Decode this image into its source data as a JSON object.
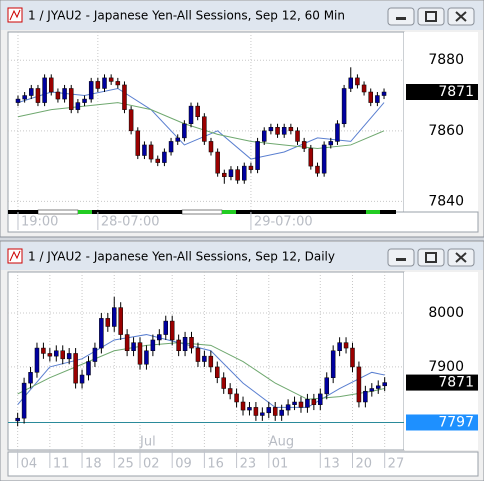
{
  "chart_data": [
    {
      "type": "candlestick",
      "title": "1 / JYAU2 - Japanese Yen-All Sessions, Sep 12, 60 Min",
      "up_color": "#0000a0",
      "down_color": "#9a0000",
      "open": [
        7868,
        7869,
        7870,
        7872,
        7868,
        7875,
        7871,
        7869,
        7872,
        7866,
        7868,
        7869,
        7874,
        7872,
        7875,
        7874,
        7873,
        7866,
        7860,
        7853,
        7856,
        7852,
        7851,
        7854,
        7857,
        7858,
        7862,
        7867,
        7864,
        7857,
        7854,
        7848,
        7847,
        7849,
        7846,
        7850,
        7849,
        7857,
        7860,
        7861,
        7859,
        7861,
        7860,
        7857,
        7855,
        7850,
        7848,
        7856,
        7857,
        7862,
        7872,
        7875,
        7873,
        7871,
        7868,
        7870
      ],
      "high": [
        7870,
        7871,
        7873,
        7873,
        7876,
        7876,
        7872,
        7873,
        7873,
        7869,
        7870,
        7875,
        7875,
        7876,
        7876,
        7875,
        7874,
        7867,
        7861,
        7857,
        7857,
        7853,
        7855,
        7858,
        7859,
        7863,
        7868,
        7868,
        7865,
        7858,
        7855,
        7849,
        7850,
        7850,
        7851,
        7851,
        7858,
        7861,
        7862,
        7862,
        7862,
        7862,
        7861,
        7858,
        7856,
        7851,
        7857,
        7858,
        7863,
        7873,
        7878,
        7876,
        7874,
        7872,
        7871,
        7872
      ],
      "low": [
        7867,
        7868,
        7869,
        7867,
        7867,
        7870,
        7868,
        7868,
        7865,
        7865,
        7867,
        7868,
        7871,
        7871,
        7873,
        7872,
        7865,
        7859,
        7852,
        7852,
        7851,
        7850,
        7850,
        7853,
        7856,
        7857,
        7861,
        7863,
        7856,
        7853,
        7847,
        7845,
        7846,
        7845,
        7845,
        7848,
        7848,
        7856,
        7859,
        7858,
        7858,
        7859,
        7856,
        7854,
        7849,
        7847,
        7847,
        7855,
        7856,
        7861,
        7871,
        7872,
        7870,
        7867,
        7867,
        7869
      ],
      "close": [
        7869,
        7870,
        7872,
        7868,
        7875,
        7871,
        7869,
        7872,
        7866,
        7868,
        7869,
        7874,
        7872,
        7875,
        7874,
        7873,
        7866,
        7860,
        7853,
        7856,
        7852,
        7851,
        7854,
        7857,
        7858,
        7862,
        7867,
        7864,
        7857,
        7854,
        7848,
        7847,
        7849,
        7846,
        7850,
        7849,
        7857,
        7860,
        7861,
        7859,
        7861,
        7860,
        7857,
        7855,
        7850,
        7848,
        7856,
        7857,
        7862,
        7872,
        7875,
        7873,
        7871,
        7868,
        7870,
        7871
      ],
      "series": [
        {
          "color": "#5a7fd0",
          "x": [
            0,
            5,
            10,
            15,
            20,
            25,
            30,
            35,
            40,
            45,
            50,
            55
          ],
          "values": [
            7868,
            7871,
            7870,
            7872,
            7866,
            7856,
            7860,
            7852,
            7854,
            7858,
            7857,
            7868
          ]
        },
        {
          "color": "#6fa86f",
          "x": [
            0,
            5,
            10,
            15,
            20,
            25,
            30,
            35,
            40,
            45,
            50,
            55
          ],
          "values": [
            7864,
            7866,
            7867,
            7868,
            7866,
            7862,
            7859,
            7857,
            7856,
            7855,
            7856,
            7860
          ]
        }
      ],
      "xlim": [
        -1.5,
        58
      ],
      "xticks": [
        {
          "value": 0,
          "label": "19:00"
        },
        {
          "value": 12,
          "label": "28-07:00"
        },
        {
          "value": 35,
          "label": "29-07:00"
        }
      ],
      "ylim": [
        7837,
        7888
      ],
      "yticks": [
        7840,
        7860,
        7880
      ],
      "grid": true,
      "last": 7871
    },
    {
      "type": "candlestick",
      "title": "1 / JYAU2 - Japanese Yen-All Sessions, Sep 12, Daily",
      "up_color": "#0000a0",
      "down_color": "#9a0000",
      "open": [
        7800,
        7805,
        7870,
        7890,
        7935,
        7925,
        7920,
        7930,
        7915,
        7925,
        7870,
        7885,
        7910,
        7935,
        7990,
        7975,
        8010,
        7960,
        7930,
        7945,
        7905,
        7930,
        7950,
        7960,
        7985,
        7950,
        7930,
        7955,
        7935,
        7910,
        7920,
        7900,
        7880,
        7860,
        7850,
        7835,
        7820,
        7825,
        7810,
        7815,
        7825,
        7810,
        7820,
        7830,
        7835,
        7825,
        7840,
        7830,
        7850,
        7880,
        7930,
        7945,
        7935,
        7900,
        7835,
        7855,
        7860,
        7865
      ],
      "high": [
        7815,
        7880,
        7900,
        7945,
        7945,
        7935,
        7940,
        7940,
        7935,
        7935,
        7895,
        7920,
        7945,
        8000,
        8000,
        8030,
        8020,
        7970,
        7955,
        7955,
        7940,
        7960,
        7970,
        7995,
        7995,
        7960,
        7965,
        7965,
        7945,
        7930,
        7930,
        7910,
        7890,
        7870,
        7860,
        7845,
        7835,
        7835,
        7825,
        7835,
        7835,
        7830,
        7840,
        7845,
        7845,
        7850,
        7850,
        7860,
        7890,
        7940,
        7955,
        7955,
        7945,
        7910,
        7865,
        7870,
        7875,
        7881
      ],
      "low": [
        7790,
        7795,
        7860,
        7880,
        7915,
        7910,
        7910,
        7905,
        7905,
        7860,
        7860,
        7875,
        7900,
        7925,
        7965,
        7965,
        7950,
        7920,
        7920,
        7895,
        7895,
        7920,
        7940,
        7950,
        7940,
        7920,
        7920,
        7925,
        7900,
        7900,
        7890,
        7870,
        7850,
        7840,
        7825,
        7810,
        7810,
        7800,
        7800,
        7805,
        7800,
        7800,
        7810,
        7820,
        7815,
        7815,
        7820,
        7820,
        7840,
        7870,
        7920,
        7925,
        7890,
        7825,
        7825,
        7845,
        7850,
        7855
      ],
      "close": [
        7805,
        7870,
        7890,
        7935,
        7925,
        7920,
        7930,
        7915,
        7925,
        7870,
        7885,
        7910,
        7935,
        7990,
        7975,
        8010,
        7960,
        7930,
        7945,
        7905,
        7930,
        7950,
        7960,
        7985,
        7950,
        7930,
        7955,
        7935,
        7910,
        7920,
        7900,
        7880,
        7860,
        7850,
        7835,
        7820,
        7825,
        7810,
        7815,
        7825,
        7810,
        7820,
        7830,
        7835,
        7825,
        7840,
        7830,
        7850,
        7880,
        7930,
        7945,
        7935,
        7900,
        7835,
        7855,
        7860,
        7865,
        7871
      ],
      "series": [
        {
          "color": "#5a7fd0",
          "x": [
            0,
            5,
            10,
            15,
            20,
            25,
            30,
            35,
            40,
            45,
            50,
            55,
            57
          ],
          "values": [
            7830,
            7900,
            7915,
            7950,
            7960,
            7945,
            7930,
            7870,
            7825,
            7825,
            7860,
            7890,
            7885
          ]
        },
        {
          "color": "#6fa86f",
          "x": [
            0,
            5,
            10,
            15,
            20,
            25,
            30,
            35,
            40,
            45,
            50,
            55,
            57
          ],
          "values": [
            7850,
            7880,
            7905,
            7930,
            7940,
            7945,
            7940,
            7910,
            7870,
            7840,
            7845,
            7855,
            7860
          ]
        }
      ],
      "xlim": [
        -1.5,
        60
      ],
      "xticks": [
        {
          "value": 0,
          "label": "04"
        },
        {
          "value": 5,
          "label": "11"
        },
        {
          "value": 10,
          "label": "18"
        },
        {
          "value": 15,
          "label": "25"
        },
        {
          "value": 19,
          "label": "02"
        },
        {
          "value": 24,
          "label": "09"
        },
        {
          "value": 29,
          "label": "16"
        },
        {
          "value": 34,
          "label": "23"
        },
        {
          "value": 39,
          "label": "01"
        },
        {
          "value": 47,
          "label": "13"
        },
        {
          "value": 52,
          "label": "20"
        },
        {
          "value": 57,
          "label": "27"
        }
      ],
      "month_ticks": [
        {
          "value": 19,
          "label": "Jul"
        },
        {
          "value": 39,
          "label": "Aug"
        }
      ],
      "ylim": [
        7746,
        8076
      ],
      "yticks": [
        7900,
        8000
      ],
      "grid": true,
      "last": 7871,
      "hline": 7797
    }
  ]
}
